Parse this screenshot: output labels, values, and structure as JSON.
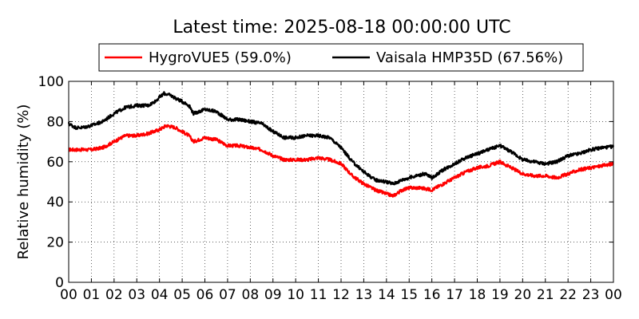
{
  "chart_data": {
    "type": "line",
    "title": "Latest time: 2025-08-18 00:00:00 UTC",
    "xlabel": "",
    "ylabel": "Relative humidity (%)",
    "xlim": [
      0,
      24
    ],
    "ylim": [
      0,
      100
    ],
    "x_tick_labels": [
      "00",
      "01",
      "02",
      "03",
      "04",
      "05",
      "06",
      "07",
      "08",
      "09",
      "10",
      "11",
      "12",
      "13",
      "14",
      "15",
      "16",
      "17",
      "18",
      "19",
      "20",
      "21",
      "22",
      "23",
      "00"
    ],
    "y_ticks": [
      0,
      20,
      40,
      60,
      80,
      100
    ],
    "grid": true,
    "legend_position": "top-center",
    "series": [
      {
        "name": "HygroVUE5 (59.0%)",
        "color": "#ff0000",
        "x": [
          0,
          0.5,
          1,
          1.5,
          2,
          2.5,
          3,
          3.5,
          4,
          4.3,
          4.7,
          5,
          5.3,
          5.5,
          6,
          6.5,
          7,
          7.5,
          8,
          8.5,
          9,
          9.5,
          10,
          10.5,
          11,
          11.5,
          12,
          12.5,
          13,
          13.5,
          14,
          14.3,
          14.7,
          15,
          15.5,
          16,
          16.5,
          17,
          17.5,
          18,
          18.5,
          19,
          19.5,
          20,
          20.5,
          21,
          21.5,
          22,
          22.5,
          23,
          23.5,
          24
        ],
        "y": [
          66,
          66,
          66,
          67,
          70,
          73,
          73,
          74,
          76,
          78,
          77,
          75,
          73,
          70,
          72,
          71,
          68,
          68,
          67,
          66,
          63,
          61,
          61,
          61,
          62,
          61,
          59,
          53,
          49,
          46,
          44,
          43,
          46,
          47,
          47,
          46,
          49,
          52,
          55,
          57,
          58,
          60,
          57,
          54,
          53,
          53,
          52,
          54,
          56,
          57,
          58,
          59
        ]
      },
      {
        "name": "Vaisala HMP35D (67.56%)",
        "color": "#000000",
        "x": [
          0,
          0.3,
          0.6,
          1,
          1.5,
          2,
          2.5,
          3,
          3.5,
          3.8,
          4.2,
          4.5,
          4.8,
          5,
          5.3,
          5.5,
          6,
          6.5,
          7,
          7.5,
          8,
          8.5,
          9,
          9.5,
          10,
          10.5,
          11,
          11.5,
          12,
          12.5,
          13,
          13.5,
          14,
          14.3,
          14.7,
          15,
          15.3,
          15.7,
          16,
          16.5,
          17,
          17.5,
          18,
          18.5,
          19,
          19.5,
          20,
          20.5,
          21,
          21.5,
          22,
          22.5,
          23,
          23.5,
          24
        ],
        "y": [
          79,
          77,
          77,
          78,
          80,
          84,
          87,
          88,
          88,
          90,
          94,
          93,
          91,
          90,
          88,
          84,
          86,
          85,
          81,
          81,
          80,
          79,
          75,
          72,
          72,
          73,
          73,
          72,
          67,
          60,
          55,
          51,
          50,
          49,
          51,
          52,
          53,
          54,
          52,
          56,
          59,
          62,
          64,
          66,
          68,
          65,
          61,
          60,
          59,
          60,
          63,
          64,
          66,
          67,
          67.5
        ]
      }
    ]
  }
}
